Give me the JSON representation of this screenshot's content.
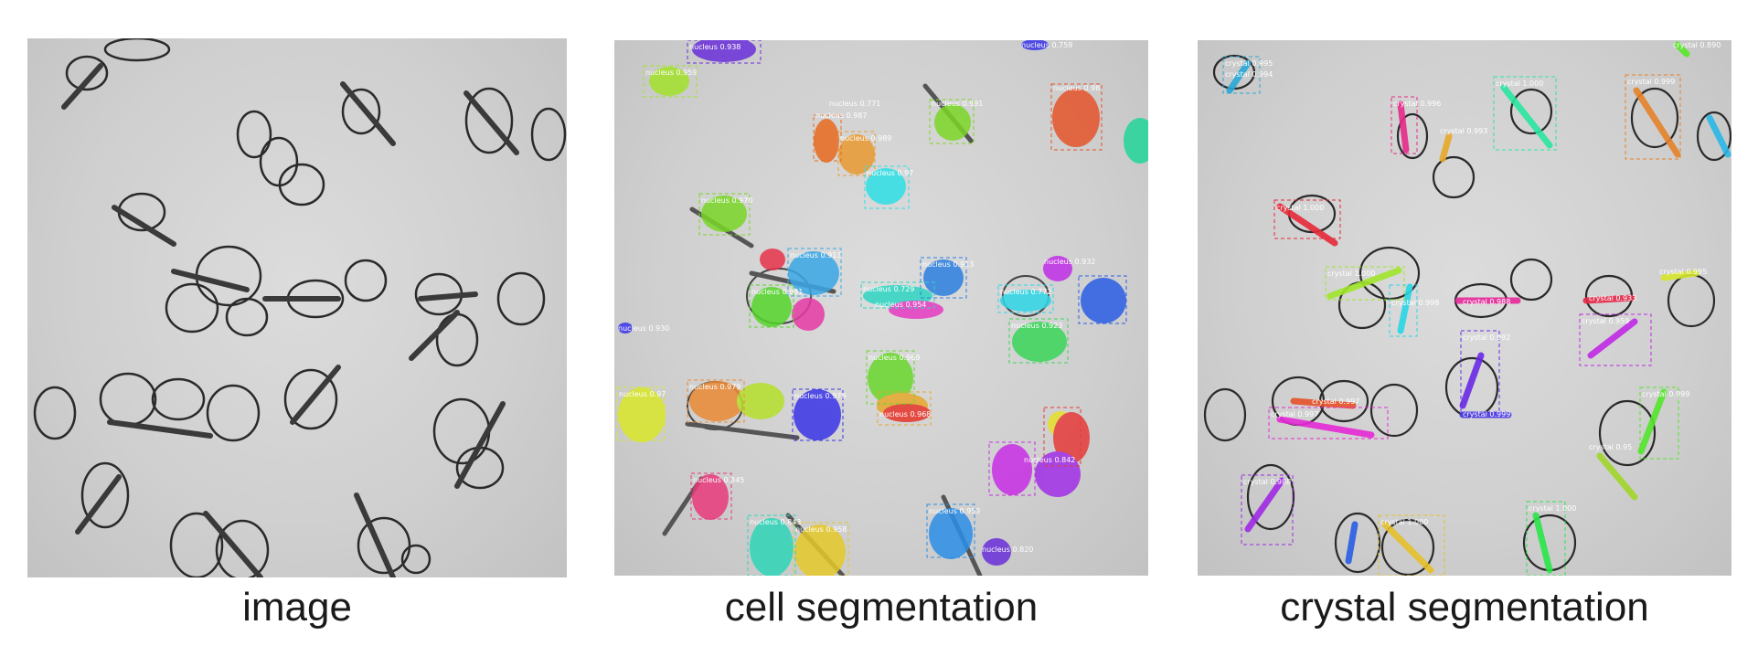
{
  "captions": {
    "image": "image",
    "cell": "cell segmentation",
    "crystal": "crystal segmentation"
  },
  "cell_labels": [
    "nucleus 0.938",
    "nucleus 0.959",
    "nucleus 0.771",
    "nucleus 0.987",
    "nucleus 0.989",
    "nucleus 0.991",
    "nucleus 0.98",
    "nucleus 0.97",
    "nucleus 0.970",
    "nucleus 0.913",
    "nucleus 0.981",
    "nucleus 0.729",
    "nucleus 0.954",
    "nucleus 0.913",
    "nucleus 0.932",
    "nucleus 0.772",
    "nucleus 0.923",
    "nucleus 0.930",
    "nucleus 0.979",
    "nucleus 0.97",
    "nucleus 0.969",
    "nucleus 0.979",
    "nucleus 0.968",
    "nucleus 0.842",
    "nucleus 0.845",
    "nucleus 0.958",
    "nucleus 0.953",
    "nucleus 0.820",
    "nucleus 0.843",
    "nucleus 0.759"
  ],
  "crystal_labels": [
    "crystal 0.995",
    "crystal 0.994",
    "crystal 1.000",
    "crystal 0.999",
    "crystal 0.996",
    "crystal 0.993",
    "crystal 1.000",
    "crystal 1.000",
    "crystal 0.998",
    "crystal 0.988",
    "crystal 0.933",
    "crystal 0.995",
    "crystal 0.997",
    "crystal 0.959",
    "crystal 0.992",
    "crystal 0.999",
    "crystal 0.997",
    "crystal 0.999",
    "crystal 0.95",
    "crystal 0.988",
    "crystal 1.000",
    "crystal 1.000",
    "crystal 0.890"
  ],
  "colors": {
    "background": "#ffffff",
    "micrograph": "#cfcfcf",
    "caption_text": "#1a1a1a"
  }
}
